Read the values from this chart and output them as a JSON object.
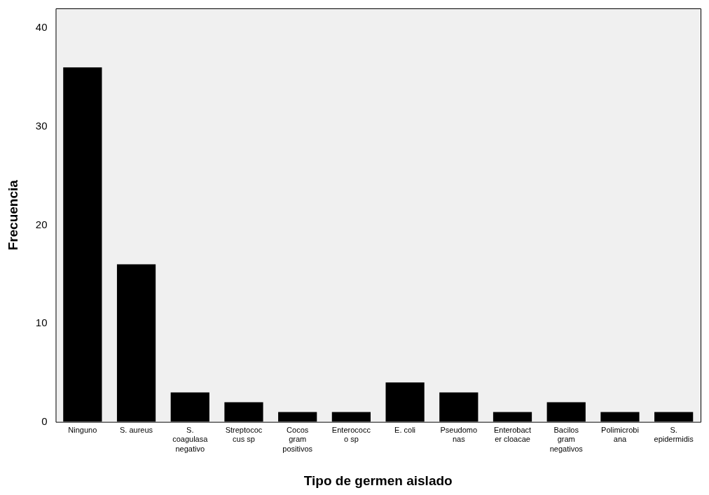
{
  "chart_data": {
    "type": "bar",
    "xlabel": "Tipo de germen aislado",
    "ylabel": "Frecuencia",
    "categories": [
      "Ninguno",
      "S. aureus",
      "S. coagulasa negativo",
      "Streptococcus sp",
      "Cocos gram positivos",
      "Enterococco sp",
      "E. coli",
      "Pseudomonas",
      "Enterobacter cloacae",
      "Bacilos gram negativos",
      "Polimicrobiana",
      "S. epidermidis"
    ],
    "values": [
      36,
      16,
      3,
      2,
      1,
      1,
      4,
      3,
      1,
      2,
      1,
      1
    ],
    "color": "#000000",
    "ylim": [
      0,
      42
    ],
    "yticks": [
      0,
      10,
      20,
      30,
      40
    ],
    "grid": false,
    "legend": false
  }
}
